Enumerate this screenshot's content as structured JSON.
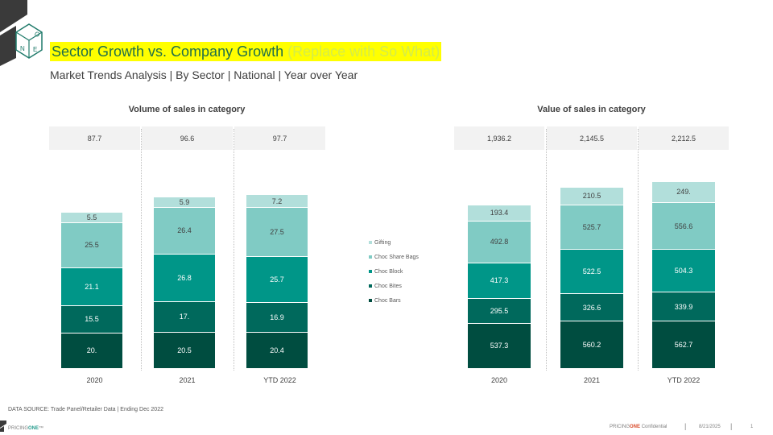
{
  "header": {
    "title": "Sector Growth vs. Company Growth",
    "title_note": "(Replace with So What)",
    "subtitle": "Market Trends Analysis | By Sector | National | Year over Year"
  },
  "colors": {
    "choc_bars": "#004d40",
    "choc_bites": "#00695c",
    "choc_block": "#009688",
    "choc_share_bags": "#80cbc4",
    "gifting": "#b2dfdb",
    "title_highlight": "#ffff00",
    "title_text": "#1f6f4a"
  },
  "chart_data": [
    {
      "type": "bar",
      "stacked": true,
      "title": "Volume of sales in category",
      "categories": [
        "2020",
        "2021",
        "YTD 2022"
      ],
      "totals": [
        "87.7",
        "96.6",
        "97.7"
      ],
      "series": [
        {
          "name": "Choc Bars",
          "values": [
            20.0,
            20.5,
            20.4
          ],
          "labels": [
            "20.",
            "20.5",
            "20.4"
          ]
        },
        {
          "name": "Choc Bites",
          "values": [
            15.5,
            17.0,
            16.9
          ],
          "labels": [
            "15.5",
            "17.",
            "16.9"
          ]
        },
        {
          "name": "Choc Block",
          "values": [
            21.1,
            26.8,
            25.7
          ],
          "labels": [
            "21.1",
            "26.8",
            "25.7"
          ]
        },
        {
          "name": "Choc Share Bags",
          "values": [
            25.5,
            26.4,
            27.5
          ],
          "labels": [
            "25.5",
            "26.4",
            "27.5"
          ]
        },
        {
          "name": "Gifting",
          "values": [
            5.5,
            5.9,
            7.2
          ],
          "labels": [
            "5.5",
            "5.9",
            "7.2"
          ]
        }
      ]
    },
    {
      "type": "bar",
      "stacked": true,
      "title": "Value of sales in category",
      "categories": [
        "2020",
        "2021",
        "YTD 2022"
      ],
      "totals": [
        "1,936.2",
        "2,145.5",
        "2,212.5"
      ],
      "series": [
        {
          "name": "Choc Bars",
          "values": [
            537.3,
            560.2,
            562.7
          ],
          "labels": [
            "537.3",
            "560.2",
            "562.7"
          ]
        },
        {
          "name": "Choc Bites",
          "values": [
            295.5,
            326.6,
            339.9
          ],
          "labels": [
            "295.5",
            "326.6",
            "339.9"
          ]
        },
        {
          "name": "Choc Block",
          "values": [
            417.3,
            522.5,
            504.3
          ],
          "labels": [
            "417.3",
            "522.5",
            "504.3"
          ]
        },
        {
          "name": "Choc Share Bags",
          "values": [
            492.8,
            525.7,
            556.6
          ],
          "labels": [
            "492.8",
            "525.7",
            "556.6"
          ]
        },
        {
          "name": "Gifting",
          "values": [
            193.4,
            210.5,
            249.0
          ],
          "labels": [
            "193.4",
            "210.5",
            "249."
          ]
        }
      ]
    }
  ],
  "legend": {
    "items": [
      {
        "label": "Gifting",
        "color": "#b2dfdb"
      },
      {
        "label": "Choc Share Bags",
        "color": "#80cbc4"
      },
      {
        "label": "Choc Block",
        "color": "#009688"
      },
      {
        "label": "Choc Bites",
        "color": "#00695c"
      },
      {
        "label": "Choc Bars",
        "color": "#004d40"
      }
    ]
  },
  "footer": {
    "source": "DATA SOURCE: Trade Panel/Retailer Data | Ending Dec 2022",
    "brand_prefix": "PRICING",
    "brand_suffix": "ONE",
    "brand_tm": "™",
    "confidential_prefix": "PRICING",
    "confidential_one": "ONE",
    "confidential_suffix": " Confidential",
    "date": "8/21/2025",
    "page": "1"
  }
}
